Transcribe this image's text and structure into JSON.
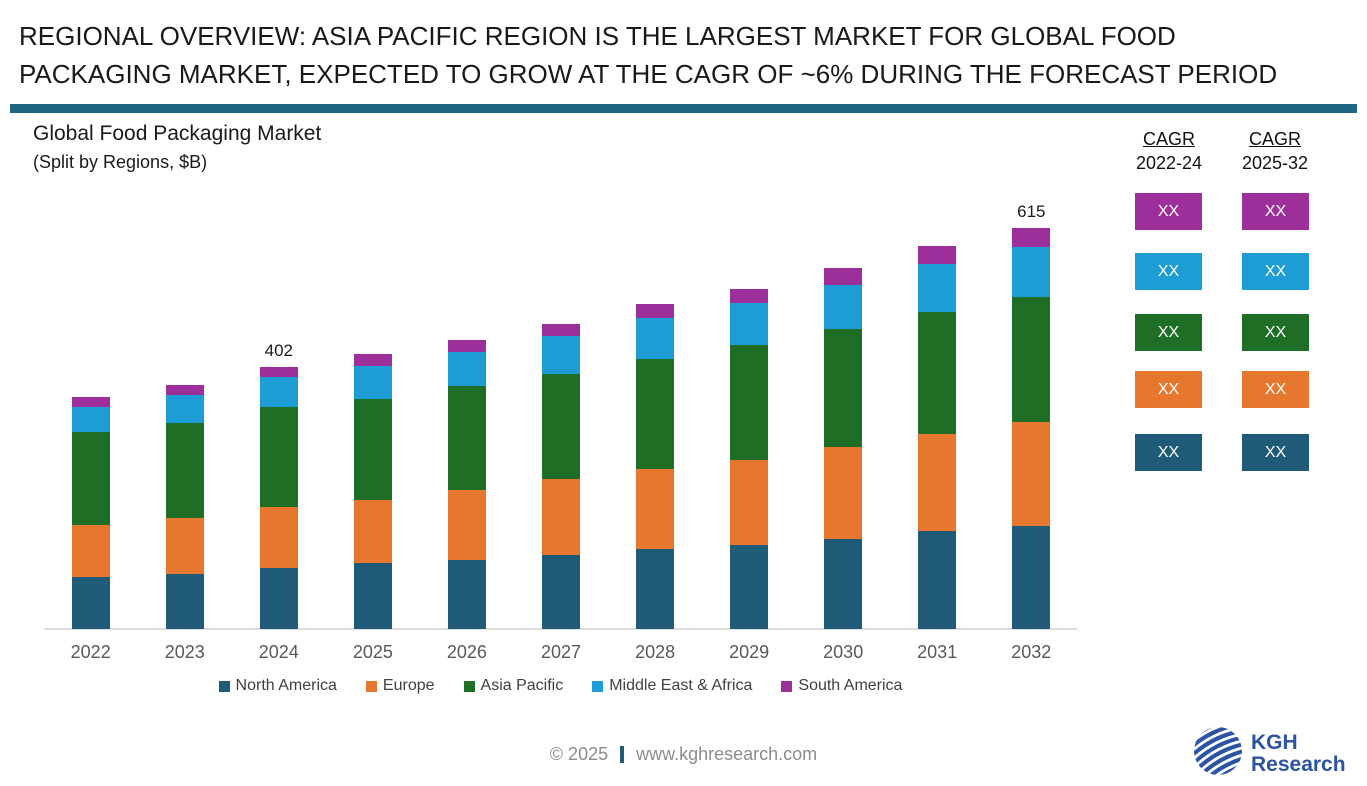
{
  "header": {
    "title_lines": [
      "REGIONAL OVERVIEW: ASIA PACIFIC REGION IS THE LARGEST MARKET FOR GLOBAL FOOD",
      "PACKAGING MARKET, EXPECTED TO GROW AT THE CAGR OF ~6% DURING THE FORECAST PERIOD"
    ]
  },
  "chart_data": {
    "type": "bar",
    "stacked": true,
    "title": "Global Food Packaging Market",
    "subtitle": "(Split by Regions, $B)",
    "ylabel": "$B",
    "categories": [
      "2022",
      "2023",
      "2024",
      "2025",
      "2026",
      "2027",
      "2028",
      "2029",
      "2030",
      "2031",
      "2032"
    ],
    "series": [
      {
        "name": "North America",
        "color": "#1F5B77",
        "values": [
          80,
          85,
          93,
          101,
          106,
          113,
          122,
          129,
          138,
          150,
          158
        ]
      },
      {
        "name": "Europe",
        "color": "#E7772E",
        "values": [
          79,
          86,
          93,
          97,
          108,
          116,
          123,
          131,
          141,
          149,
          160
        ]
      },
      {
        "name": "Asia Pacific",
        "color": "#1E6E26",
        "values": [
          142,
          145,
          154,
          155,
          159,
          161,
          168,
          177,
          181,
          187,
          192
        ]
      },
      {
        "name": "Middle East & Africa",
        "color": "#1E9CD6",
        "values": [
          38,
          43,
          46,
          50,
          52,
          59,
          63,
          64,
          68,
          74,
          76
        ]
      },
      {
        "name": "South America",
        "color": "#9D2F9A",
        "values": [
          15,
          15,
          16,
          18,
          18,
          19,
          21,
          22,
          26,
          27,
          29
        ]
      }
    ],
    "data_labels": {
      "2024": "402",
      "2032": "615"
    },
    "values_note": "Only totals 402 (2024) and 615 (2032) are labeled on the chart; per-region values estimated from bar heights",
    "legend_position": "bottom",
    "grid": false,
    "stack_order_bottom_to_top": [
      "North America",
      "Europe",
      "Asia Pacific",
      "Middle East & Africa",
      "South America"
    ]
  },
  "cagr": {
    "columns": [
      {
        "label": "CAGR",
        "range": "2022-24"
      },
      {
        "label": "CAGR",
        "range": "2025-32"
      }
    ],
    "cell_label": "XX",
    "rows_top_to_bottom": [
      "South America",
      "Middle East & Africa",
      "Asia Pacific",
      "Europe",
      "North America"
    ]
  },
  "footer": {
    "copyright": "© 2025",
    "website": "www.kghresearch.com"
  },
  "logo": {
    "line1": "KGH",
    "line2": "Research"
  },
  "colors": {
    "divider": "#1F6480",
    "axis_line": "#DCDCDC",
    "year_labels": "#595959",
    "legend_text": "#404040",
    "footer_text": "#8C8C8C",
    "logo_blue": "#2D54A4",
    "north_america": "#1F5B77",
    "europe": "#E7772E",
    "asia_pacific": "#1E6E26",
    "middle_east_africa": "#1E9CD6",
    "south_america": "#9D2F9A"
  }
}
